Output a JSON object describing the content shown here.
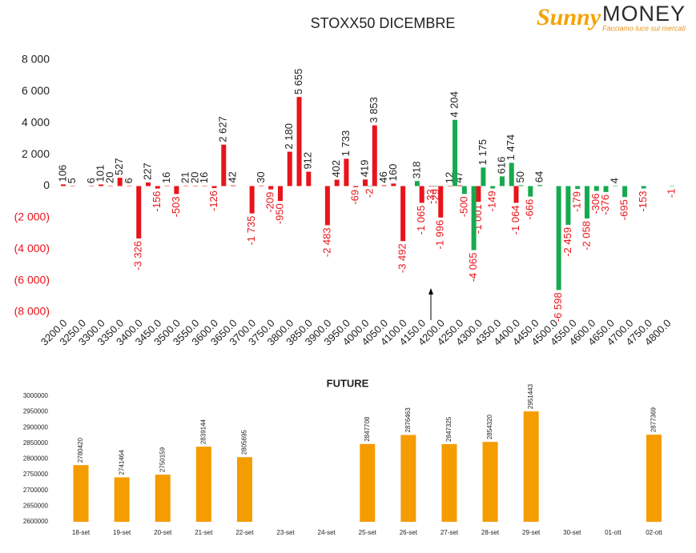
{
  "logo": {
    "brand": "Sunny",
    "name": "MONEY",
    "tagline": "Facciamo luce sui mercati"
  },
  "chart_data": [
    {
      "type": "bar",
      "title": "STOXX50 DICEMBRE",
      "categories": [
        "3200.0",
        null,
        "3250.0",
        null,
        "3300.0",
        null,
        "3350.0",
        null,
        "3400.0",
        null,
        "3450.0",
        null,
        "3500.0",
        null,
        "3550.0",
        null,
        "3600.0",
        null,
        "3650.0",
        null,
        "3700.0",
        null,
        "3750.0",
        null,
        "3800.0",
        null,
        "3850.0",
        null,
        "3900.0",
        null,
        "3950.0",
        null,
        "4000.0",
        null,
        "4050.0",
        null,
        "4100.0",
        null,
        "4150.0",
        null,
        "4200.0",
        null,
        "4250.0",
        null,
        "4300.0",
        null,
        "4350.0",
        null,
        "4400.0",
        null,
        "4450.0",
        null,
        "4500.0",
        null,
        "4550.0",
        null,
        "4600.0",
        null,
        "4650.0",
        null,
        "4700.0",
        null,
        "4750.0",
        null,
        "4800.0"
      ],
      "series": [
        {
          "color": "#e8141b",
          "values": [
            106,
            5,
            null,
            6,
            101,
            20,
            527,
            6,
            -3326,
            227,
            -156,
            16,
            -503,
            21,
            20,
            16,
            -126,
            2627,
            42,
            null,
            -1735,
            30,
            -209,
            -950,
            2180,
            5655,
            912,
            null,
            -2483,
            402,
            1733,
            -69,
            419,
            3853,
            46,
            160,
            -3492,
            null,
            -1065,
            -33,
            -1996,
            12,
            47,
            null,
            -1001,
            null,
            null,
            null,
            -1064,
            null,
            null,
            null,
            null,
            null,
            null,
            null,
            null,
            null,
            null,
            null,
            null,
            null,
            null,
            null,
            null
          ],
          "value_labels": [
            "106",
            "5",
            null,
            "6",
            "101",
            "20",
            "527",
            "6",
            "-3 326",
            "227",
            "-156",
            "16",
            "-503",
            "21",
            "20",
            "16",
            "-126",
            "2 627",
            "42",
            null,
            "-1 735",
            "30",
            "-209",
            "-950",
            "2 180",
            "5 655",
            "912",
            null,
            "-2 483",
            "402",
            "1 733",
            "-69",
            "419",
            "3 853",
            "46",
            "160",
            "-3 492",
            null,
            "-1 065",
            "-33",
            "-1 996",
            "12",
            "47",
            null,
            "-1 001",
            null,
            null,
            null,
            "-1 064",
            null,
            null,
            null,
            null,
            null,
            null,
            null,
            null,
            null,
            null,
            null,
            null,
            null,
            null,
            null,
            null
          ]
        },
        {
          "color": "#17a94f",
          "values": [
            null,
            null,
            null,
            null,
            null,
            null,
            null,
            null,
            null,
            null,
            null,
            null,
            null,
            null,
            null,
            null,
            null,
            null,
            null,
            null,
            null,
            null,
            null,
            null,
            null,
            null,
            null,
            null,
            null,
            null,
            null,
            null,
            -2,
            null,
            null,
            null,
            null,
            318,
            null,
            -29,
            null,
            4204,
            -500,
            -4065,
            1175,
            -149,
            616,
            1474,
            50,
            -666,
            64,
            null,
            -6598,
            -2459,
            -179,
            -2058,
            -306,
            -376,
            4,
            -695,
            null,
            -153,
            null,
            null,
            -1
          ],
          "value_labels": [
            null,
            null,
            null,
            null,
            null,
            null,
            null,
            null,
            null,
            null,
            null,
            null,
            null,
            null,
            null,
            null,
            null,
            null,
            null,
            null,
            null,
            null,
            null,
            null,
            null,
            null,
            null,
            null,
            null,
            null,
            null,
            null,
            "-2",
            null,
            null,
            null,
            null,
            "318",
            null,
            "-29",
            null,
            "4 204",
            "-500",
            "-4 065",
            "1 175",
            "-149",
            "616",
            "1 474",
            "50",
            "-666",
            "64",
            null,
            "-6 598",
            "-2 459",
            "-179",
            "-2 058",
            "-306",
            "-376",
            "4",
            "-695",
            null,
            "-153",
            null,
            null,
            "-1"
          ]
        }
      ],
      "negative_label_color": "#e8141b",
      "ylim": [
        -8000,
        8000
      ],
      "yticks": [
        {
          "value": -8000,
          "label": "(8 000)"
        },
        {
          "value": -6000,
          "label": "(6 000)"
        },
        {
          "value": -4000,
          "label": "(4 000)"
        },
        {
          "value": -2000,
          "label": "(2 000)"
        },
        0,
        {
          "value": 2000,
          "label": "2 000"
        },
        {
          "value": 4000,
          "label": "4 000"
        },
        {
          "value": 6000,
          "label": "6 000"
        },
        {
          "value": 8000,
          "label": "8 000"
        }
      ],
      "grid": false
    },
    {
      "type": "bar",
      "title": "FUTURE",
      "categories": [
        "18-set",
        "19-set",
        "20-set",
        "21-set",
        "22-set",
        "23-set",
        "24-set",
        "25-set",
        "26-set",
        "27-set",
        "28-set",
        "29-set",
        "30-set",
        "01-ott",
        "02-ott"
      ],
      "values": [
        2780420,
        2741464,
        2750159,
        2839144,
        2805695,
        null,
        null,
        2847708,
        2876463,
        2847325,
        2854320,
        2951443,
        null,
        null,
        2877369
      ],
      "color": "#f59c00",
      "ylim": [
        2600000,
        3000000
      ],
      "yticks": [
        2600000,
        2650000,
        2700000,
        2750000,
        2800000,
        2850000,
        2900000,
        2950000,
        3000000
      ],
      "grid": false
    }
  ]
}
